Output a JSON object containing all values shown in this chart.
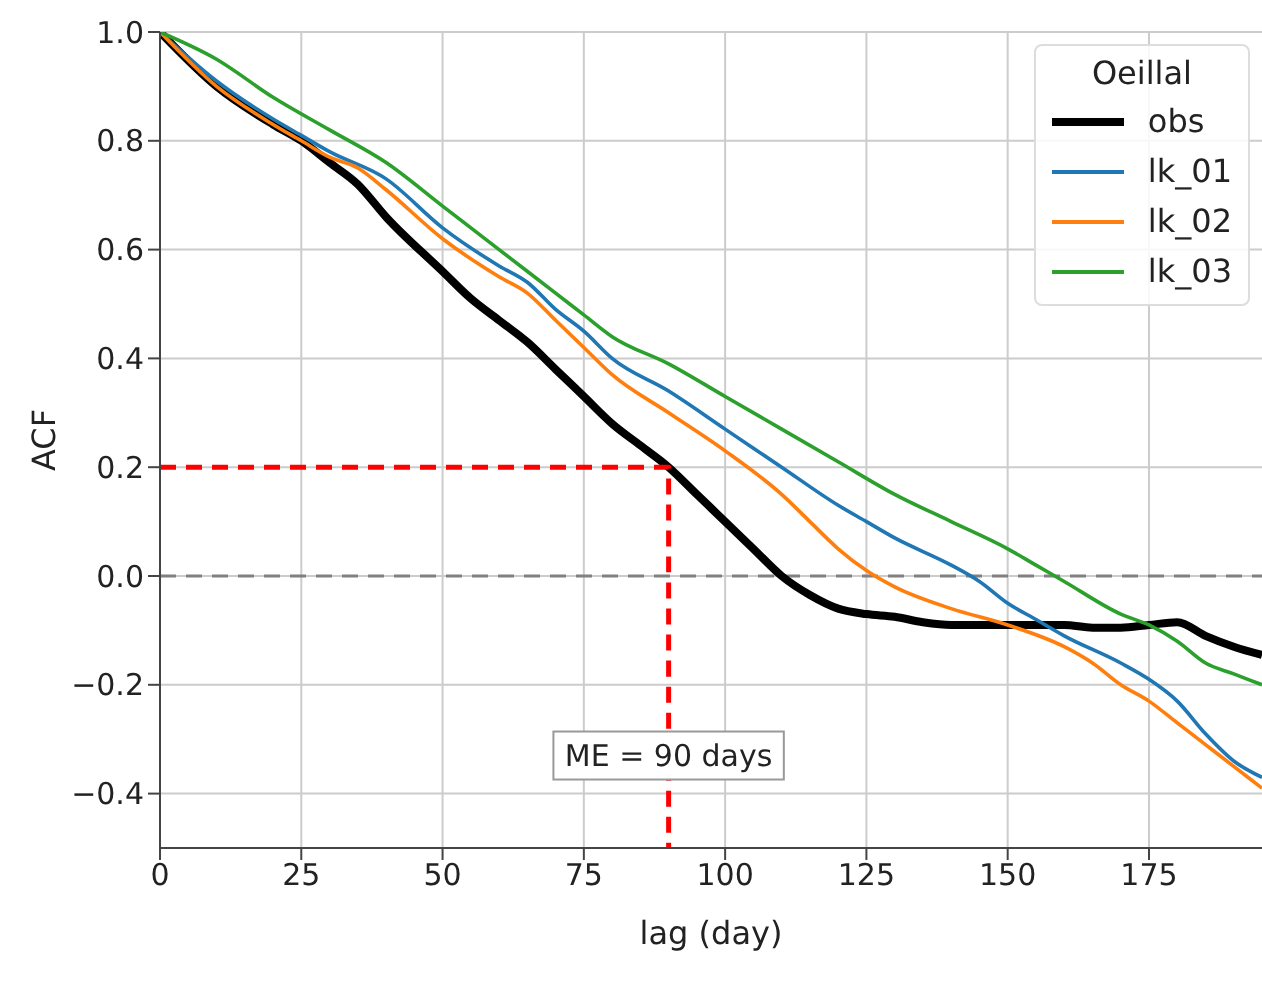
{
  "chart_data": {
    "type": "line",
    "xlabel": "lag (day)",
    "ylabel": "ACF",
    "legend_title": "Oeillal",
    "legend": "top right",
    "grid": true,
    "line_style": "solid",
    "marker": "none",
    "xlim": [
      0,
      195
    ],
    "xticks": [
      0,
      25,
      50,
      75,
      100,
      125,
      150,
      175
    ],
    "ylim": [
      -0.5,
      1.0
    ],
    "yticks": [
      {
        "value": -0.4,
        "label": "−0.4"
      },
      {
        "value": -0.2,
        "label": "−0.2"
      },
      {
        "value": 0,
        "label": "0.0"
      },
      0.2,
      0.4,
      0.6,
      0.8,
      {
        "value": 1,
        "label": "1.0"
      }
    ],
    "ref_lines": [
      {
        "axis": "y",
        "value": 0,
        "color": "#808080",
        "line_style": "dashed"
      }
    ],
    "annotations": [
      {
        "text": "ME = 90 days",
        "x": 90,
        "y": -0.33
      }
    ],
    "series": [
      {
        "name": "obs",
        "color": "#000000",
        "x": [
          0,
          10,
          20,
          25,
          30,
          35,
          40,
          50,
          55,
          60,
          65,
          70,
          75,
          80,
          85,
          90,
          95,
          100,
          105,
          110,
          115,
          120,
          125,
          130,
          135,
          140,
          150,
          160,
          165,
          170,
          175,
          180,
          185,
          190,
          195
        ],
        "values": [
          1.0,
          0.9,
          0.83,
          0.8,
          0.76,
          0.72,
          0.66,
          0.56,
          0.51,
          0.47,
          0.43,
          0.38,
          0.33,
          0.28,
          0.24,
          0.2,
          0.15,
          0.1,
          0.05,
          0.0,
          -0.035,
          -0.06,
          -0.07,
          -0.075,
          -0.085,
          -0.09,
          -0.09,
          -0.09,
          -0.095,
          -0.095,
          -0.09,
          -0.085,
          -0.11,
          -0.13,
          -0.145
        ]
      },
      {
        "name": "lk_01",
        "color": "#1f77b4",
        "x": [
          0,
          10,
          20,
          25,
          30,
          40,
          50,
          60,
          65,
          70,
          75,
          80,
          90,
          100,
          110,
          120,
          125,
          130,
          140,
          145,
          150,
          155,
          160,
          170,
          175,
          180,
          185,
          190,
          195
        ],
        "values": [
          1.0,
          0.91,
          0.84,
          0.81,
          0.78,
          0.73,
          0.64,
          0.57,
          0.54,
          0.49,
          0.45,
          0.4,
          0.34,
          0.27,
          0.2,
          0.13,
          0.1,
          0.07,
          0.02,
          -0.01,
          -0.05,
          -0.08,
          -0.11,
          -0.16,
          -0.19,
          -0.23,
          -0.29,
          -0.34,
          -0.37
        ]
      },
      {
        "name": "lk_02",
        "color": "#ff7f0e",
        "x": [
          0,
          10,
          20,
          25,
          30,
          35,
          40,
          50,
          60,
          65,
          70,
          75,
          80,
          90,
          100,
          110,
          115,
          120,
          125,
          130,
          140,
          150,
          160,
          165,
          170,
          175,
          180,
          185,
          190,
          195
        ],
        "values": [
          1.0,
          0.9,
          0.83,
          0.8,
          0.77,
          0.75,
          0.71,
          0.62,
          0.55,
          0.52,
          0.47,
          0.42,
          0.37,
          0.3,
          0.23,
          0.15,
          0.1,
          0.05,
          0.01,
          -0.02,
          -0.06,
          -0.09,
          -0.13,
          -0.16,
          -0.2,
          -0.23,
          -0.27,
          -0.31,
          -0.35,
          -0.39
        ]
      },
      {
        "name": "lk_03",
        "color": "#2ca02c",
        "x": [
          0,
          10,
          20,
          30,
          40,
          50,
          60,
          70,
          75,
          80,
          90,
          100,
          110,
          120,
          130,
          140,
          150,
          155,
          160,
          170,
          175,
          180,
          185,
          190,
          195
        ],
        "values": [
          1.0,
          0.95,
          0.88,
          0.82,
          0.76,
          0.68,
          0.6,
          0.52,
          0.48,
          0.44,
          0.39,
          0.33,
          0.27,
          0.21,
          0.15,
          0.1,
          0.05,
          0.02,
          -0.01,
          -0.07,
          -0.09,
          -0.12,
          -0.16,
          -0.18,
          -0.2
        ]
      },
      {
        "color": "#ff0000",
        "line_style": "dashed",
        "x": [
          0,
          90,
          90
        ],
        "values": [
          0.2,
          0.2,
          -0.5
        ]
      }
    ]
  }
}
